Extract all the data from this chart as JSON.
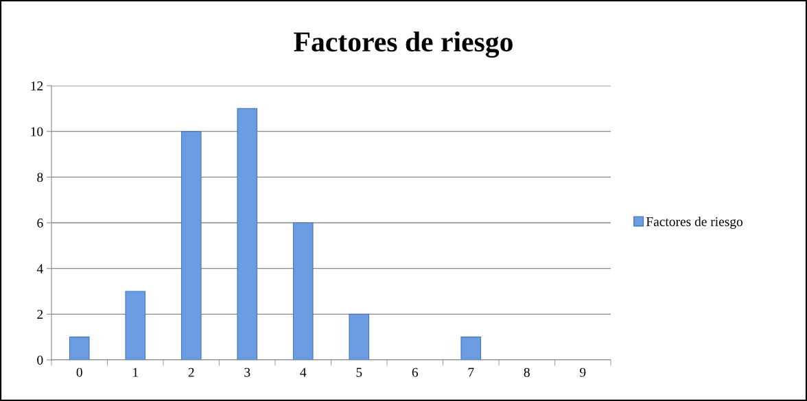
{
  "chart_data": {
    "type": "bar",
    "title": "Factores de riesgo",
    "categories": [
      "0",
      "1",
      "2",
      "3",
      "4",
      "5",
      "6",
      "7",
      "8",
      "9"
    ],
    "series": [
      {
        "name": "Factores de riesgo",
        "color": "#6b9be0",
        "values": [
          1,
          3,
          10,
          11,
          6,
          2,
          0,
          1,
          0,
          0
        ]
      }
    ],
    "ylim": [
      0,
      12
    ],
    "yticks": [
      0,
      2,
      4,
      6,
      8,
      10,
      12
    ],
    "grid": "y",
    "legend": "right"
  }
}
